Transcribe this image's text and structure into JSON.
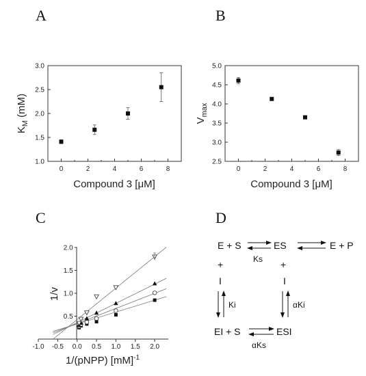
{
  "chart_data": [
    {
      "panel": "A",
      "type": "scatter",
      "xlabel": "Compound 3 [μM]",
      "ylabel_main": "K",
      "ylabel_sub": "M",
      "ylabel_tail": " (mM)",
      "xlim": [
        -1,
        9
      ],
      "ylim": [
        1.0,
        3.0
      ],
      "xticks": [
        0,
        2,
        4,
        6,
        8
      ],
      "yticks": [
        "1.0",
        "1.5",
        "2.0",
        "2.5",
        "3.0"
      ],
      "points": [
        {
          "x": 0,
          "y": 1.41,
          "err": 0.04
        },
        {
          "x": 2.5,
          "y": 1.66,
          "err": 0.1
        },
        {
          "x": 5,
          "y": 2.0,
          "err": 0.12
        },
        {
          "x": 7.5,
          "y": 2.55,
          "err": 0.3
        }
      ]
    },
    {
      "panel": "B",
      "type": "scatter",
      "xlabel": "Compound 3 [μM]",
      "ylabel_main": "V",
      "ylabel_sub": "max",
      "xlim": [
        -1,
        9
      ],
      "ylim": [
        2.5,
        5.0
      ],
      "xticks": [
        0,
        2,
        4,
        6,
        8
      ],
      "yticks": [
        "2.5",
        "3.0",
        "3.5",
        "4.0",
        "4.5",
        "5.0"
      ],
      "points": [
        {
          "x": 0,
          "y": 4.61,
          "err": 0.08
        },
        {
          "x": 2.5,
          "y": 4.13,
          "err": 0.03
        },
        {
          "x": 5,
          "y": 3.65,
          "err": 0.04
        },
        {
          "x": 7.5,
          "y": 2.73,
          "err": 0.08
        }
      ]
    },
    {
      "panel": "C",
      "type": "scatter",
      "xlabel": "1/(pNPP) [mM]",
      "xlabel_sup": "-1",
      "ylabel": "1/v",
      "xlim": [
        -1.0,
        2.35
      ],
      "ylim": [
        0,
        2.0
      ],
      "xticks": [
        "-1.0",
        "-0.5",
        "0.0",
        "0.5",
        "1.0",
        "1.5",
        "2.0"
      ],
      "yticks": [
        "0.5",
        "1.0",
        "1.5",
        "2.0"
      ],
      "series": [
        {
          "marker": "square",
          "slope": 0.26,
          "intercept": 0.33,
          "x": [
            0.05,
            0.1,
            0.25,
            0.5,
            1.0,
            2.0
          ],
          "y": [
            0.25,
            0.29,
            0.33,
            0.38,
            0.53,
            0.85
          ]
        },
        {
          "marker": "circle-open",
          "slope": 0.33,
          "intercept": 0.34,
          "x": [
            0.05,
            0.1,
            0.25,
            0.5,
            1.0,
            2.0
          ],
          "y": [
            0.28,
            0.32,
            0.37,
            0.45,
            0.62,
            1.01
          ]
        },
        {
          "marker": "triangle",
          "slope": 0.42,
          "intercept": 0.36,
          "x": [
            0.05,
            0.1,
            0.25,
            0.5,
            1.0,
            2.0
          ],
          "y": [
            0.3,
            0.35,
            0.45,
            0.57,
            0.78,
            1.21
          ]
        },
        {
          "marker": "triangle-down-open",
          "slope": 0.72,
          "intercept": 0.35,
          "x": [
            0.05,
            0.1,
            0.25,
            0.5,
            1.0,
            2.0
          ],
          "y": [
            0.35,
            0.44,
            0.58,
            0.93,
            1.13,
            1.8
          ]
        }
      ]
    }
  ],
  "panels": {
    "A": "A",
    "B": "B",
    "C": "C",
    "D": "D"
  },
  "scheme": {
    "e_plus_s": "E + S",
    "es": "ES",
    "e_plus_p": "E + P",
    "plus_left": "+",
    "plus_right": "+",
    "i_left": "I",
    "i_right": "I",
    "ks": "Ks",
    "ki": "Ki",
    "alpha_ki": "αKi",
    "ei_plus_s": "EI + S",
    "esi": "ESI",
    "alpha_ks": "αKs"
  }
}
